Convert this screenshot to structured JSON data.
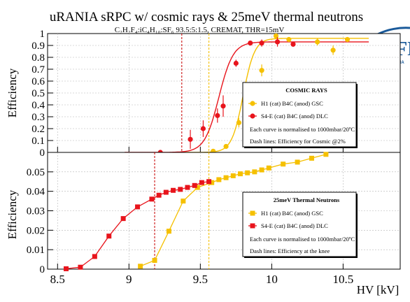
{
  "header": {
    "title": "uRANIA sRPC w/ cosmic rays & 25meV thermal neutrons",
    "subtitle": "C₂H₂F₄:iC₄H₁₀:SF₆ 93.5:5:1.5, CREMAT, THR=15mV"
  },
  "logo": {
    "text": "INFN",
    "sub": "uRANIA"
  },
  "axes": {
    "ylabel_top": "Efficiency",
    "ylabel_bottom": "Efficiency",
    "xlabel": "HV [kV]"
  },
  "colors": {
    "gold": "#f5c000",
    "red": "#e8141c",
    "gold_dash": "#f5c000",
    "red_dash": "#cc1111"
  },
  "chart_data": [
    {
      "type": "scatter",
      "title": "COSMIC RAYS",
      "xlim": [
        8.43,
        10.9
      ],
      "ylim": [
        0,
        1.0
      ],
      "yticks": [
        "0",
        "0.1",
        "0.2",
        "0.3",
        "0.4",
        "0.5",
        "0.6",
        "0.7",
        "0.8",
        "0.9",
        "1"
      ],
      "xticks": [
        "8.5",
        "9",
        "9.5",
        "10",
        "10.5"
      ],
      "grid": true,
      "legend_position": "right",
      "legend": {
        "title": "COSMIC RAYS",
        "entries": [
          "H1    (cat) B4C (anod) GSC",
          "S4-E   (cat) B4C (anod) DLC"
        ],
        "notes": [
          "Each curve is normalised to 1000mbar/20ºC",
          "Dash lines: Efficiency for Cosmic @2%"
        ]
      },
      "series": [
        {
          "name": "H1    (cat) B4C (anod) GSC",
          "color": "#f5c000",
          "x": [
            9.59,
            9.68,
            9.77,
            9.83,
            9.93,
            10.03,
            10.12,
            10.32,
            10.43,
            10.53
          ],
          "y": [
            0.01,
            0.05,
            0.25,
            0.52,
            0.69,
            0.98,
            0.95,
            0.93,
            0.86,
            0.95
          ],
          "yerr": [
            0.01,
            0.02,
            0.04,
            0.05,
            0.05,
            0.02,
            0.02,
            0.03,
            0.04,
            0.02
          ]
        },
        {
          "name": "S4-E   (cat) B4C (anod) DLC",
          "color": "#e8141c",
          "x": [
            9.22,
            9.43,
            9.52,
            9.62,
            9.66,
            9.75,
            9.85,
            9.93,
            10.04,
            10.15
          ],
          "y": [
            0.0,
            0.11,
            0.2,
            0.31,
            0.39,
            0.75,
            0.92,
            0.92,
            0.93,
            0.91
          ],
          "yerr": [
            0.02,
            0.08,
            0.07,
            0.06,
            0.09,
            0.03,
            0.02,
            0.03,
            0.04,
            0.02
          ]
        }
      ],
      "fits": [
        {
          "series": 0,
          "midpoint": 9.8,
          "width": 0.04,
          "plateau": 0.96
        },
        {
          "series": 1,
          "midpoint": 9.63,
          "width": 0.05,
          "plateau": 0.93
        }
      ],
      "dashed_vlines": [
        {
          "x": 9.37,
          "color": "#cc1111"
        },
        {
          "x": 9.56,
          "color": "#f5c000"
        }
      ]
    },
    {
      "type": "scatter",
      "title": "25meV Thermal Neutrons",
      "xlim": [
        8.43,
        10.9
      ],
      "ylim": [
        0,
        0.06
      ],
      "yticks": [
        "0",
        "0.01",
        "0.02",
        "0.03",
        "0.04",
        "0.05"
      ],
      "xticks": [
        "8.5",
        "9",
        "9.5",
        "10",
        "10.5"
      ],
      "grid": true,
      "legend_position": "bottom-right",
      "legend": {
        "title": "25meV Thermal Neutrons",
        "entries": [
          "H1    (cat) B4C (anod) GSC",
          "S4-E   (cat) B4C (anod) DLC"
        ],
        "notes": [
          "Each curve is normalised to 1000mbar/20ºC",
          "Dash lines: Efficiency at the knee"
        ]
      },
      "series": [
        {
          "name": "H1    (cat) B4C (anod) GSC",
          "color": "#f5c000",
          "x": [
            9.08,
            9.18,
            9.28,
            9.38,
            9.48,
            9.58,
            9.63,
            9.68,
            9.73,
            9.78,
            9.83,
            9.88,
            9.93,
            9.98,
            10.08,
            10.18,
            10.28,
            10.38
          ],
          "y": [
            0.0015,
            0.0045,
            0.0195,
            0.035,
            0.042,
            0.0445,
            0.046,
            0.047,
            0.048,
            0.049,
            0.0495,
            0.05,
            0.051,
            0.052,
            0.054,
            0.055,
            0.057,
            0.059
          ],
          "yerr": [
            0,
            0,
            0,
            0,
            0,
            0,
            0,
            0,
            0,
            0,
            0,
            0,
            0,
            0,
            0,
            0,
            0,
            0
          ]
        },
        {
          "name": "S4-E   (cat) B4C (anod) DLC",
          "color": "#e8141c",
          "x": [
            8.56,
            8.66,
            8.76,
            8.86,
            8.96,
            9.06,
            9.16,
            9.21,
            9.26,
            9.31,
            9.36,
            9.41,
            9.46,
            9.51,
            9.56
          ],
          "y": [
            0.0002,
            0.001,
            0.0065,
            0.017,
            0.026,
            0.032,
            0.036,
            0.038,
            0.0395,
            0.0405,
            0.041,
            0.042,
            0.043,
            0.0445,
            0.045
          ],
          "yerr": [
            0,
            0,
            0,
            0,
            0,
            0,
            0,
            0,
            0,
            0,
            0,
            0,
            0,
            0,
            0
          ]
        }
      ],
      "dashed_vlines": [
        {
          "x": 9.18,
          "color": "#cc1111"
        },
        {
          "x": 9.56,
          "color": "#f5c000"
        }
      ]
    }
  ]
}
